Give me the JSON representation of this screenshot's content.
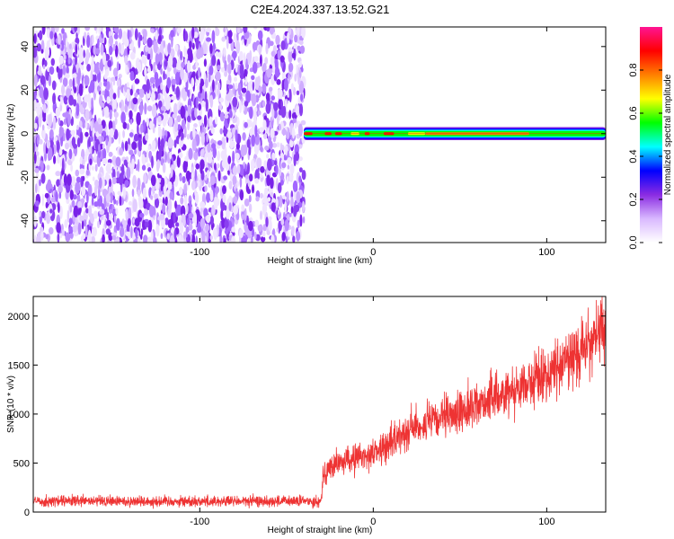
{
  "title": "C2E4.2024.337.13.52.G21",
  "chart_data": [
    {
      "type": "heatmap",
      "xlabel": "Height of straight line (km)",
      "ylabel": "Frequency (Hz)",
      "xlim": [
        -196,
        134
      ],
      "ylim": [
        -50,
        49
      ],
      "xticks": [
        -100,
        0,
        100
      ],
      "xtick_labels": [
        "-100",
        "0",
        "100"
      ],
      "yticks": [
        -40,
        -20,
        0,
        20,
        40
      ],
      "ytick_labels": [
        "-40",
        "-20",
        "0",
        "20",
        "40"
      ],
      "noise_region_x": [
        -196,
        -40
      ],
      "signal_band_hz": [
        -3,
        3
      ],
      "colorbar": {
        "label": "Normalized spectral amplitude",
        "range": [
          0,
          1
        ],
        "ticks": [
          0.0,
          0.2,
          0.4,
          0.6,
          0.8
        ],
        "tick_labels": [
          "0.0",
          "0.2",
          "0.4",
          "0.6",
          "0.8"
        ],
        "colors": [
          "#ffffff",
          "#d9b8ff",
          "#8a2be2",
          "#0000ff",
          "#00ffff",
          "#00ff00",
          "#ffff00",
          "#ff7f00",
          "#ff0000",
          "#ff1493"
        ]
      }
    },
    {
      "type": "line",
      "xlabel": "Height of straight line (km)",
      "ylabel": "SNR (10 * v/v)",
      "xlim": [
        -196,
        134
      ],
      "ylim": [
        0,
        2200
      ],
      "xticks": [
        -100,
        0,
        100
      ],
      "xtick_labels": [
        "-100",
        "0",
        "100"
      ],
      "yticks": [
        0,
        500,
        1000,
        1500,
        2000
      ],
      "ytick_labels": [
        "0",
        "500",
        "1000",
        "1500",
        "2000"
      ],
      "color": "#ee3333",
      "series": [
        {
          "x": [
            -196,
            -150,
            -100,
            -50,
            -30,
            -29,
            -20,
            -10,
            0,
            10,
            20,
            40,
            60,
            80,
            100,
            120,
            134
          ],
          "values": [
            110,
            110,
            110,
            110,
            110,
            400,
            500,
            550,
            600,
            700,
            850,
            950,
            1100,
            1250,
            1400,
            1650,
            1900
          ]
        }
      ]
    }
  ]
}
